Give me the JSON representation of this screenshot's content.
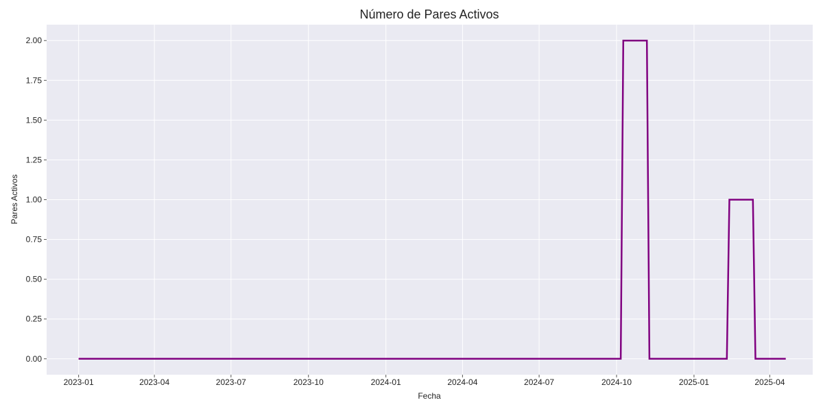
{
  "chart_data": {
    "type": "line",
    "title": "Número de Pares Activos",
    "xlabel": "Fecha",
    "ylabel": "Pares Activos",
    "x_type": "date",
    "xlim": [
      "2022-11-24",
      "2025-05-22"
    ],
    "ylim": [
      -0.1,
      2.1
    ],
    "x_ticks": [
      "2023-01",
      "2023-04",
      "2023-07",
      "2023-10",
      "2024-01",
      "2024-04",
      "2024-07",
      "2024-10",
      "2025-01",
      "2025-04"
    ],
    "y_ticks": [
      "0.00",
      "0.25",
      "0.50",
      "0.75",
      "1.00",
      "1.25",
      "1.50",
      "1.75",
      "2.00"
    ],
    "grid": true,
    "background_color": "#eaeaf2",
    "grid_color": "#ffffff",
    "series": [
      {
        "color": "#800080",
        "x": [
          "2023-01-01",
          "2024-10-06",
          "2024-10-09",
          "2024-11-06",
          "2024-11-09",
          "2025-02-09",
          "2025-02-12",
          "2025-03-12",
          "2025-03-15",
          "2025-04-20"
        ],
        "y": [
          0,
          0,
          2,
          2,
          0,
          0,
          1,
          1,
          0,
          0
        ]
      }
    ]
  }
}
